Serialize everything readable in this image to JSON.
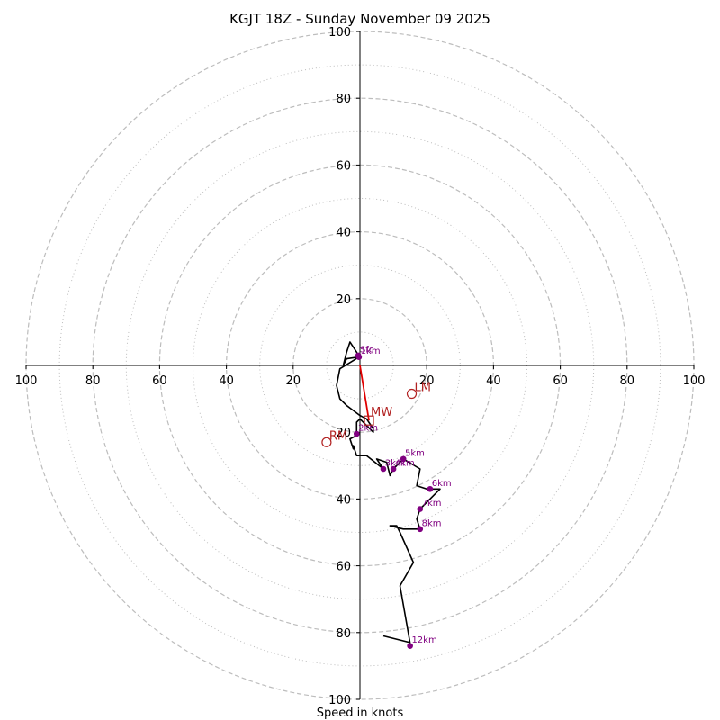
{
  "chart_data": {
    "type": "hodograph",
    "title": "KGJT 18Z - Sunday November 09 2025",
    "xlabel": "Speed in knots",
    "units": "knots",
    "max_speed": 100,
    "ring_labels_major": [
      "20",
      "40",
      "60",
      "80",
      "100"
    ],
    "ring_values_major": [
      20,
      40,
      60,
      80,
      100
    ],
    "ring_values_minor": [
      10,
      30,
      50,
      70,
      90
    ],
    "x_tick_labels": [
      "100",
      "80",
      "60",
      "40",
      "20",
      "",
      "20",
      "40",
      "60",
      "80",
      "100"
    ],
    "x_tick_values": [
      -100,
      -80,
      -60,
      -40,
      -20,
      0,
      20,
      40,
      60,
      80,
      100
    ],
    "y_tick_labels": [
      "100",
      "80",
      "60",
      "40",
      "20",
      "20",
      "40",
      "60",
      "80",
      "100"
    ],
    "y_tick_values": [
      100,
      80,
      60,
      40,
      20,
      -20,
      -40,
      -60,
      -80,
      -100
    ],
    "hodograph_trace": [
      [
        -0.5,
        2.5
      ],
      [
        -4,
        2
      ],
      [
        -5,
        0
      ],
      [
        -4,
        4
      ],
      [
        -3,
        7
      ],
      [
        -1,
        4
      ],
      [
        -0.3,
        2.5
      ],
      [
        -6,
        -1
      ],
      [
        -7,
        -6
      ],
      [
        -6,
        -10
      ],
      [
        -4,
        -12
      ],
      [
        0,
        -15
      ],
      [
        2,
        -16
      ],
      [
        4,
        -19
      ],
      [
        4,
        -20
      ],
      [
        0,
        -16
      ],
      [
        -1,
        -17
      ],
      [
        -1,
        -21
      ],
      [
        -3,
        -22
      ],
      [
        -2,
        -25
      ],
      [
        -2,
        -24
      ],
      [
        -1,
        -27
      ],
      [
        2,
        -27
      ],
      [
        7,
        -31
      ],
      [
        5,
        -28
      ],
      [
        8,
        -29
      ],
      [
        9,
        -33
      ],
      [
        10,
        -31
      ],
      [
        13,
        -28
      ],
      [
        18,
        -31
      ],
      [
        17,
        -36
      ],
      [
        20,
        -37
      ],
      [
        24,
        -37
      ],
      [
        22,
        -39
      ],
      [
        18,
        -43
      ],
      [
        17,
        -46
      ],
      [
        18,
        -49
      ],
      [
        13,
        -49
      ],
      [
        9,
        -48
      ],
      [
        11,
        -48
      ],
      [
        12,
        -50
      ],
      [
        16,
        -59
      ],
      [
        12,
        -66
      ],
      [
        15,
        -83
      ],
      [
        7,
        -81
      ]
    ],
    "height_markers": [
      {
        "label": "Sfc",
        "u": -0.5,
        "v": 3.0
      },
      {
        "label": "1km",
        "u": -0.3,
        "v": 2.5
      },
      {
        "label": "2km",
        "u": -1,
        "v": -20.5
      },
      {
        "label": "3km",
        "u": 7,
        "v": -31
      },
      {
        "label": "4km",
        "u": 10,
        "v": -31
      },
      {
        "label": "5km",
        "u": 13,
        "v": -28
      },
      {
        "label": "6km",
        "u": 21,
        "v": -37
      },
      {
        "label": "7km",
        "u": 18,
        "v": -43
      },
      {
        "label": "8km",
        "u": 18,
        "v": -49
      },
      {
        "label": "12km",
        "u": 15,
        "v": -84
      }
    ],
    "storm_motions": [
      {
        "label": "LM",
        "u": 15.5,
        "v": -8.5,
        "shape": "circle"
      },
      {
        "label": "RM",
        "u": -10,
        "v": -23,
        "shape": "circle"
      },
      {
        "label": "MW",
        "u": 2.7,
        "v": -16.5,
        "shape": "square"
      }
    ],
    "shear_vector": {
      "from": [
        0,
        0
      ],
      "to": [
        2.7,
        -16.5
      ]
    },
    "colors": {
      "trace": "#000000",
      "height_marker": "#800080",
      "storm_motion": "#b22222",
      "shear_vector": "#e00000",
      "ring": "#bdbdbd"
    }
  }
}
